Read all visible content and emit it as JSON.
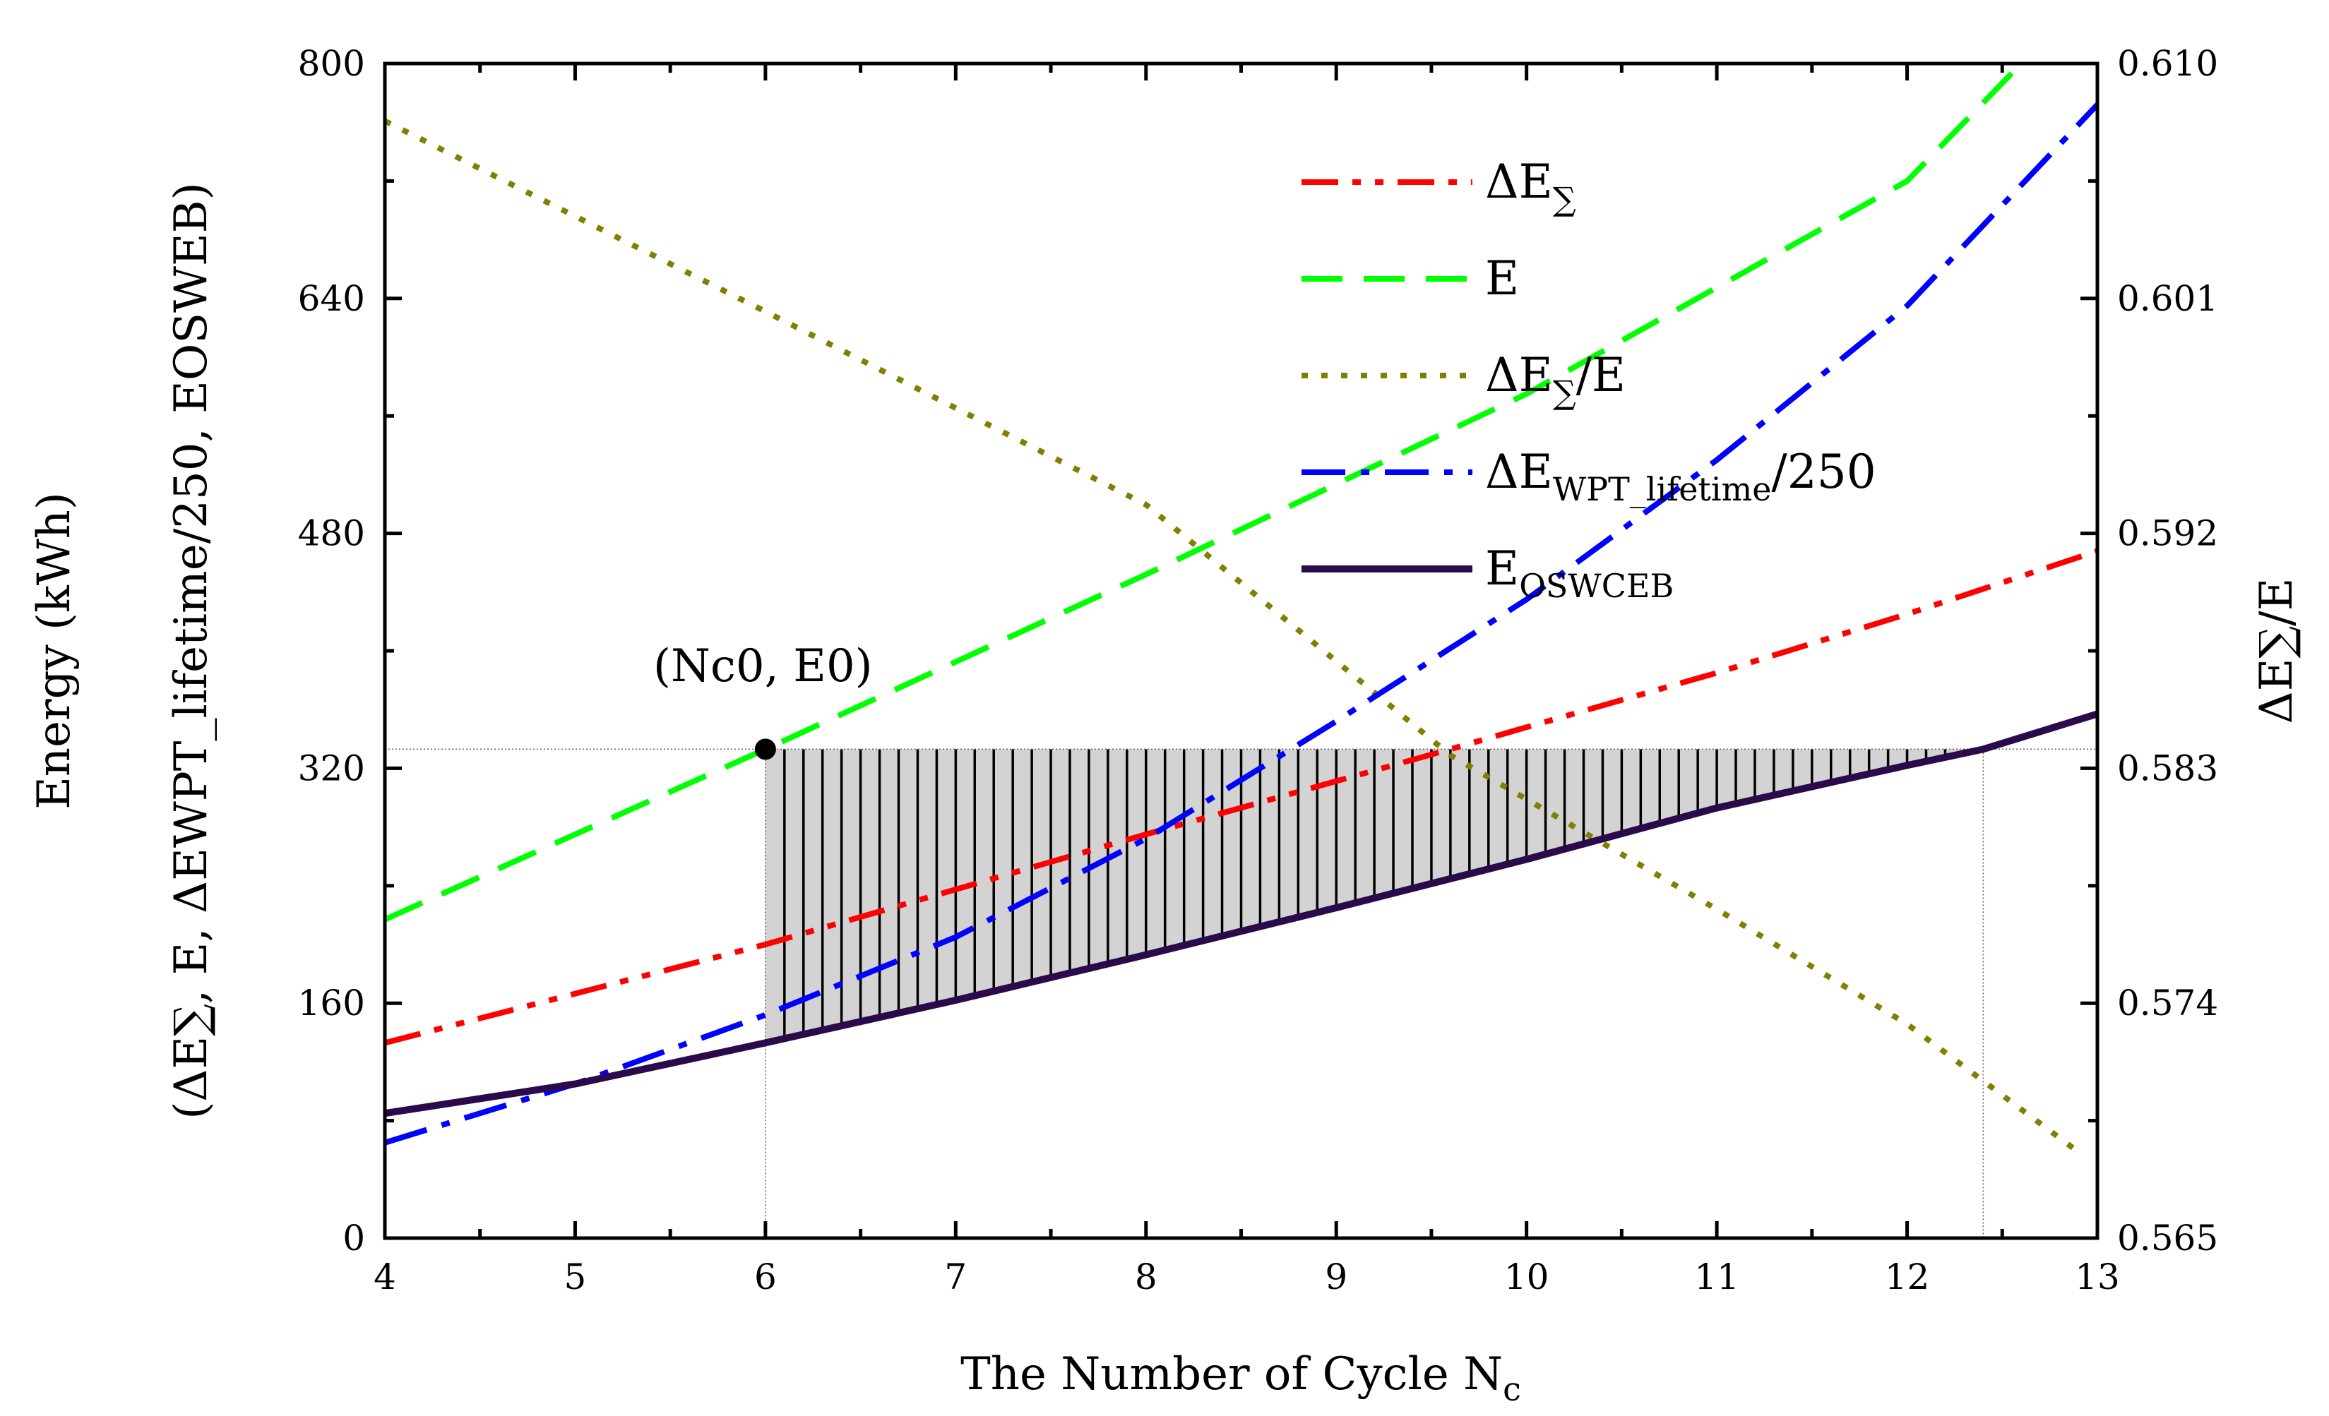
{
  "chart_data": {
    "type": "line",
    "xlabel": "The Number of Cycle N",
    "xlabel_sub": "c",
    "ylabel_line1": "Energy (kWh)",
    "ylabel_line2": "(ΔE∑, E, ΔEWPT_lifetime/250, EOSWEB)",
    "y2label": "ΔE∑/E",
    "xlim": [
      4,
      13
    ],
    "ylim": [
      0,
      800
    ],
    "y2lim": [
      0.565,
      0.61
    ],
    "x_ticks": [
      "4",
      "5",
      "6",
      "7",
      "8",
      "9",
      "10",
      "11",
      "12",
      "13"
    ],
    "y_ticks": [
      "0",
      "160",
      "320",
      "480",
      "640",
      "800"
    ],
    "y2_ticks": [
      "0.565",
      "0.574",
      "0.583",
      "0.592",
      "0.601",
      "0.610"
    ],
    "series": [
      {
        "name": "ΔE∑",
        "axis": "left",
        "color": "#ff0000",
        "style": "dash-dot-dot",
        "x": [
          4,
          6,
          8,
          9.6,
          10,
          11,
          12,
          13
        ],
        "y": [
          133,
          200,
          275,
          333,
          348,
          385,
          425,
          468
        ]
      },
      {
        "name": "E",
        "axis": "left",
        "color": "#00ff00",
        "style": "dash",
        "x": [
          4,
          6,
          8,
          10,
          12,
          12.6
        ],
        "y": [
          217,
          333,
          452,
          575,
          720,
          800
        ]
      },
      {
        "name": "ΔE∑/E",
        "axis": "right",
        "color": "#808000",
        "style": "dot",
        "x": [
          4,
          6,
          8,
          9.6,
          11,
          12,
          12.9
        ],
        "y": [
          0.6078,
          0.6005,
          0.5931,
          0.5835,
          0.5776,
          0.5732,
          0.5683
        ]
      },
      {
        "name": "ΔEWPT_lifetime/250",
        "axis": "left",
        "color": "#0000ff",
        "style": "dash-dot",
        "x": [
          4,
          5,
          6,
          7,
          8,
          9,
          10,
          11,
          12,
          13
        ],
        "y": [
          65,
          105,
          152,
          205,
          272,
          352,
          435,
          530,
          635,
          772
        ]
      },
      {
        "name": "EOSWCEB",
        "axis": "left",
        "color": "#2a0a4a",
        "style": "solid",
        "x": [
          4,
          5,
          6,
          7,
          8,
          9,
          10,
          11,
          12,
          12.4,
          13
        ],
        "y": [
          85,
          105,
          133,
          162,
          193,
          225,
          258,
          293,
          322,
          333,
          357
        ]
      }
    ],
    "legend": {
      "placement": "top-right",
      "entries": [
        {
          "main": "ΔE",
          "sub": "∑",
          "tail": ""
        },
        {
          "main": "E",
          "sub": "",
          "tail": ""
        },
        {
          "main": "ΔE",
          "sub": "∑",
          "tail": "/E"
        },
        {
          "main": "ΔE",
          "sub": "WPT_lifetime",
          "tail": "/250"
        },
        {
          "main": "E",
          "sub": "OSWCEB",
          "tail": ""
        }
      ]
    },
    "annotations": {
      "point_label": "(Nc0, E0)",
      "point": {
        "x": 6,
        "y": 333
      },
      "shaded_region": {
        "x_start": 6,
        "x_end": 12.4,
        "upper_y": 333,
        "lower_series": "EOSWCEB"
      },
      "reference_lines": {
        "horizontal_y": 333,
        "vertical_x": [
          6,
          12.4
        ]
      }
    }
  }
}
